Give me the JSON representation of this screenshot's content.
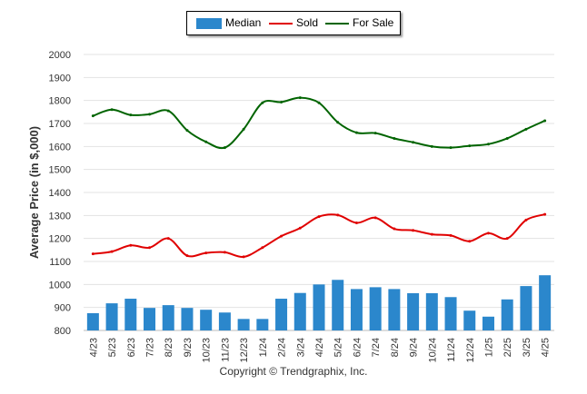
{
  "chart_data": {
    "type": "bar",
    "ylabel": "Average Price (in $,000)",
    "ylim": [
      800,
      2000
    ],
    "yticks": [
      "800",
      "900",
      "1000",
      "1100",
      "1200",
      "1300",
      "1400",
      "1500",
      "1600",
      "1700",
      "1800",
      "1900",
      "2000"
    ],
    "grid": true,
    "legend_position": "top-center",
    "categories": [
      "4/23",
      "5/23",
      "6/23",
      "7/23",
      "8/23",
      "9/23",
      "10/23",
      "11/23",
      "12/23",
      "1/24",
      "2/24",
      "3/24",
      "4/24",
      "5/24",
      "6/24",
      "7/24",
      "8/24",
      "9/24",
      "10/24",
      "11/24",
      "12/24",
      "1/25",
      "2/25",
      "3/25",
      "4/25"
    ],
    "series": [
      {
        "name": "Median",
        "type": "bar",
        "color": "#2b87cc",
        "values": [
          875,
          918,
          938,
          898,
          910,
          898,
          890,
          878,
          850,
          850,
          938,
          963,
          1000,
          1020,
          980,
          988,
          980,
          962,
          962,
          945,
          886,
          860,
          935,
          993,
          1040
        ]
      },
      {
        "name": "Sold",
        "type": "line",
        "color": "#e00000",
        "values": [
          1133,
          1143,
          1170,
          1160,
          1200,
          1125,
          1137,
          1140,
          1120,
          1160,
          1210,
          1245,
          1295,
          1302,
          1268,
          1290,
          1242,
          1235,
          1218,
          1213,
          1188,
          1223,
          1200,
          1280,
          1305
        ]
      },
      {
        "name": "For Sale",
        "type": "line",
        "color": "#006400",
        "values": [
          1733,
          1760,
          1737,
          1740,
          1755,
          1670,
          1620,
          1595,
          1675,
          1790,
          1793,
          1812,
          1790,
          1705,
          1660,
          1658,
          1635,
          1618,
          1600,
          1595,
          1603,
          1610,
          1635,
          1675,
          1712
        ]
      }
    ]
  },
  "footer": {
    "copyright": "Copyright © Trendgraphix, Inc."
  }
}
